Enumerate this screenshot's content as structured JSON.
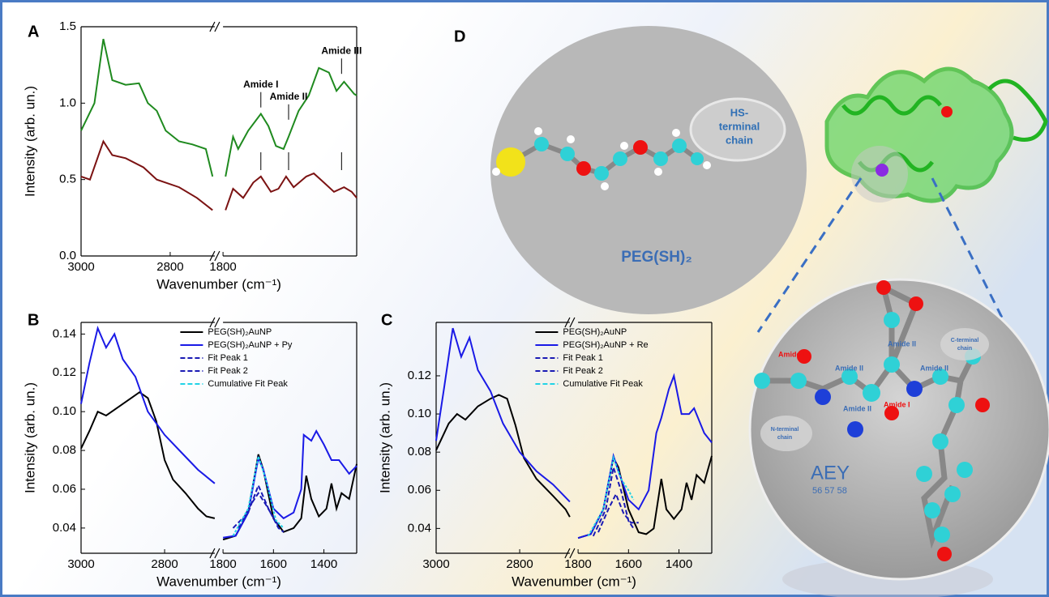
{
  "chart_data": [
    {
      "type": "line",
      "label": "A",
      "ylabel": "Intensity (arb. un.)",
      "xlabel": "Wavenumber (cm⁻¹)",
      "xlim": [
        3000,
        1270
      ],
      "x_break": [
        2700,
        1800
      ],
      "xticks": [
        3000,
        2800,
        1800
      ],
      "ylim": [
        0,
        1.5
      ],
      "yticks": [
        {
          "value": 0,
          "label": "0.0"
        },
        0.5,
        {
          "value": 1,
          "label": "1.0"
        },
        1.5
      ],
      "series": [
        {
          "color": "#1f8a1f",
          "linestyle": "solid",
          "x": [
            3000,
            2970,
            2950,
            2930,
            2900,
            2870,
            2850,
            2830,
            2810,
            2780,
            2750,
            2720,
            2705,
            null,
            1790,
            1760,
            1740,
            1700,
            1650,
            1620,
            1590,
            1560,
            1540,
            1500,
            1460,
            1420,
            1380,
            1350,
            1320,
            1300,
            1280,
            1270
          ],
          "values": [
            0.82,
            1.0,
            1.42,
            1.15,
            1.12,
            1.13,
            1.0,
            0.95,
            0.82,
            0.75,
            0.73,
            0.7,
            0.52,
            null,
            0.52,
            0.78,
            0.7,
            0.82,
            0.93,
            0.85,
            0.72,
            0.7,
            0.78,
            0.95,
            1.05,
            1.23,
            1.2,
            1.08,
            1.14,
            1.1,
            1.06,
            1.05
          ]
        },
        {
          "color": "#7b1212",
          "linestyle": "solid",
          "x": [
            3000,
            2980,
            2950,
            2930,
            2900,
            2860,
            2830,
            2780,
            2740,
            2705,
            null,
            1790,
            1760,
            1720,
            1680,
            1650,
            1610,
            1580,
            1550,
            1520,
            1470,
            1440,
            1400,
            1360,
            1320,
            1290,
            1270
          ],
          "values": [
            0.52,
            0.5,
            0.75,
            0.66,
            0.64,
            0.58,
            0.5,
            0.45,
            0.38,
            0.3,
            null,
            0.3,
            0.44,
            0.38,
            0.48,
            0.52,
            0.42,
            0.44,
            0.52,
            0.45,
            0.52,
            0.54,
            0.48,
            0.42,
            0.45,
            0.42,
            0.38
          ]
        }
      ],
      "annotations": [
        {
          "text": "Amide I",
          "x": 1650,
          "y": 1.12
        },
        {
          "text": "Amide II",
          "x": 1540,
          "y": 1.04
        },
        {
          "text": "Amide III",
          "x": 1330,
          "y": 1.34
        }
      ]
    },
    {
      "type": "line",
      "label": "B",
      "ylabel": "Intensity (arb. un.)",
      "xlabel": "Wavenumber (cm⁻¹)",
      "xlim": [
        3000,
        1270
      ],
      "x_break": [
        2680,
        1800
      ],
      "xticks": [
        3000,
        2800,
        1800,
        1600,
        1400
      ],
      "ylim": [
        0.027,
        0.146
      ],
      "yticks": [
        0.04,
        0.06,
        0.08,
        {
          "value": 0.1,
          "label": "0.10"
        },
        0.12,
        0.14
      ],
      "legend": "upper right",
      "series": [
        {
          "name": "PEG(SH)₂AuNP",
          "color": "#000000",
          "linestyle": "solid",
          "x": [
            3000,
            2980,
            2960,
            2940,
            2920,
            2880,
            2860,
            2840,
            2820,
            2800,
            2780,
            2750,
            2720,
            2700,
            2680,
            null,
            1800,
            1750,
            1700,
            1660,
            1640,
            1600,
            1560,
            1520,
            1490,
            1470,
            1450,
            1420,
            1390,
            1370,
            1350,
            1330,
            1300,
            1270
          ],
          "values": [
            0.081,
            0.09,
            0.1,
            0.098,
            0.101,
            0.107,
            0.11,
            0.107,
            0.095,
            0.075,
            0.065,
            0.058,
            0.05,
            0.046,
            0.045,
            null,
            0.034,
            0.036,
            0.048,
            0.078,
            0.07,
            0.045,
            0.038,
            0.04,
            0.045,
            0.067,
            0.055,
            0.046,
            0.05,
            0.063,
            0.05,
            0.058,
            0.055,
            0.073
          ]
        },
        {
          "name": "PEG(SH)₂AuNP + Py",
          "color": "#1a1ae6",
          "linestyle": "solid",
          "x": [
            3000,
            2980,
            2960,
            2940,
            2920,
            2900,
            2870,
            2840,
            2800,
            2760,
            2720,
            2680,
            null,
            1800,
            1750,
            1700,
            1660,
            1640,
            1600,
            1560,
            1520,
            1490,
            1480,
            1450,
            1430,
            1400,
            1370,
            1340,
            1300,
            1270
          ],
          "values": [
            0.104,
            0.125,
            0.143,
            0.133,
            0.14,
            0.127,
            0.118,
            0.1,
            0.088,
            0.079,
            0.07,
            0.063,
            null,
            0.035,
            0.036,
            0.048,
            0.076,
            0.07,
            0.05,
            0.045,
            0.048,
            0.06,
            0.088,
            0.085,
            0.09,
            0.083,
            0.075,
            0.075,
            0.068,
            0.072
          ]
        },
        {
          "name": "Fit Peak 1",
          "color": "#1a1ab4",
          "linestyle": "dashed",
          "x": [
            1760,
            1700,
            1660,
            1620,
            1580,
            1560
          ],
          "values": [
            0.04,
            0.048,
            0.062,
            0.05,
            0.04,
            0.038
          ]
        },
        {
          "name": "Fit Peak 2",
          "color": "#1a1ab4",
          "linestyle": "dashed",
          "x": [
            1740,
            1690,
            1660,
            1630,
            1580
          ],
          "values": [
            0.04,
            0.052,
            0.058,
            0.052,
            0.041
          ]
        },
        {
          "name": "Cumulative Fit Peak",
          "color": "#22d3e6",
          "linestyle": "dashed",
          "x": [
            1760,
            1700,
            1660,
            1630,
            1590,
            1560
          ],
          "values": [
            0.036,
            0.05,
            0.077,
            0.065,
            0.044,
            0.04
          ]
        }
      ]
    },
    {
      "type": "line",
      "label": "C",
      "ylabel": "Intensity (arb. un.)",
      "xlabel": "Wavenumber (cm⁻¹)",
      "xlim": [
        3000,
        1270
      ],
      "x_break": [
        2680,
        1800
      ],
      "xticks": [
        3000,
        2800,
        1800,
        1600,
        1400
      ],
      "ylim": [
        0.027,
        0.148
      ],
      "yticks": [
        0.04,
        0.06,
        0.08,
        {
          "value": 0.1,
          "label": "0.10"
        },
        0.12
      ],
      "legend": "upper right",
      "series": [
        {
          "name": "PEG(SH)₂AuNP",
          "color": "#000000",
          "linestyle": "solid",
          "x": [
            3000,
            2970,
            2950,
            2930,
            2900,
            2870,
            2850,
            2830,
            2810,
            2790,
            2760,
            2720,
            2690,
            2680,
            null,
            1800,
            1750,
            1700,
            1660,
            1640,
            1600,
            1560,
            1530,
            1500,
            1470,
            1450,
            1420,
            1390,
            1370,
            1350,
            1330,
            1300,
            1270
          ],
          "values": [
            0.081,
            0.095,
            0.1,
            0.097,
            0.104,
            0.108,
            0.11,
            0.108,
            0.094,
            0.077,
            0.066,
            0.057,
            0.05,
            0.046,
            null,
            0.035,
            0.037,
            0.05,
            0.077,
            0.072,
            0.05,
            0.038,
            0.037,
            0.04,
            0.066,
            0.05,
            0.045,
            0.05,
            0.064,
            0.055,
            0.068,
            0.064,
            0.078
          ]
        },
        {
          "name": "PEG(SH)₂AuNP + Re",
          "color": "#1a1ae6",
          "linestyle": "solid",
          "x": [
            3000,
            2980,
            2960,
            2940,
            2920,
            2900,
            2870,
            2840,
            2800,
            2760,
            2720,
            2680,
            null,
            1800,
            1750,
            1700,
            1660,
            1640,
            1600,
            1560,
            1520,
            1490,
            1470,
            1440,
            1420,
            1390,
            1360,
            1340,
            1300,
            1270
          ],
          "values": [
            0.086,
            0.115,
            0.145,
            0.13,
            0.14,
            0.123,
            0.112,
            0.095,
            0.08,
            0.07,
            0.063,
            0.054,
            null,
            0.035,
            0.037,
            0.05,
            0.078,
            0.07,
            0.055,
            0.05,
            0.06,
            0.09,
            0.098,
            0.113,
            0.12,
            0.1,
            0.1,
            0.103,
            0.09,
            0.085
          ]
        },
        {
          "name": "Fit Peak 1",
          "color": "#1a1ab4",
          "linestyle": "dashed",
          "x": [
            1740,
            1690,
            1660,
            1630,
            1600,
            1580
          ],
          "values": [
            0.036,
            0.05,
            0.072,
            0.06,
            0.044,
            0.04
          ]
        },
        {
          "name": "Fit Peak 2",
          "color": "#1a1ab4",
          "linestyle": "dashed",
          "x": [
            1720,
            1680,
            1650,
            1620,
            1590,
            1560
          ],
          "values": [
            0.038,
            0.05,
            0.058,
            0.048,
            0.043,
            0.043
          ]
        },
        {
          "name": "Cumulative Fit Peak",
          "color": "#22d3e6",
          "linestyle": "dashed",
          "x": [
            1760,
            1700,
            1660,
            1630,
            1600,
            1580
          ],
          "values": [
            0.036,
            0.05,
            0.077,
            0.066,
            0.06,
            0.055
          ]
        }
      ]
    }
  ],
  "diagram": {
    "label": "D",
    "peg": {
      "bubble": [
        "HS-",
        "terminal",
        "chain"
      ],
      "name": "PEG(SH)₂"
    },
    "aey": {
      "amide_i": [
        "Amide I",
        "Amide I"
      ],
      "amide_ii": [
        "Amide II",
        "Amide II",
        "Amide II",
        "Amide II"
      ],
      "c_terminal": [
        "C-terminal",
        "chain"
      ],
      "n_terminal": [
        "N-terminal",
        "chain"
      ],
      "name": "AEY",
      "residues": "56 57 58"
    }
  }
}
